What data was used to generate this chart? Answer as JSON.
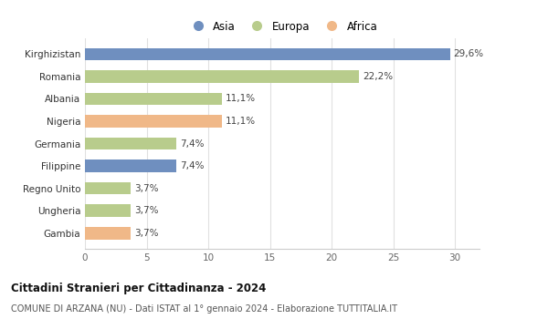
{
  "categories": [
    "Gambia",
    "Ungheria",
    "Regno Unito",
    "Filippine",
    "Germania",
    "Nigeria",
    "Albania",
    "Romania",
    "Kirghizistan"
  ],
  "values": [
    3.7,
    3.7,
    3.7,
    7.4,
    7.4,
    11.1,
    11.1,
    22.2,
    29.6
  ],
  "labels": [
    "3,7%",
    "3,7%",
    "3,7%",
    "7,4%",
    "7,4%",
    "11,1%",
    "11,1%",
    "22,2%",
    "29,6%"
  ],
  "continents": [
    "Africa",
    "Europa",
    "Europa",
    "Asia",
    "Europa",
    "Africa",
    "Europa",
    "Europa",
    "Asia"
  ],
  "colors": {
    "Asia": "#6f8fbf",
    "Europa": "#b8cc8c",
    "Africa": "#f0b888"
  },
  "legend_items": [
    "Asia",
    "Europa",
    "Africa"
  ],
  "legend_colors": [
    "#6f8fbf",
    "#b8cc8c",
    "#f0b888"
  ],
  "title": "Cittadini Stranieri per Cittadinanza - 2024",
  "subtitle": "COMUNE DI ARZANA (NU) - Dati ISTAT al 1° gennaio 2024 - Elaborazione TUTTITALIA.IT",
  "xlim": [
    0,
    32
  ],
  "xticks": [
    0,
    5,
    10,
    15,
    20,
    25,
    30
  ],
  "background_color": "#ffffff",
  "bar_height": 0.55
}
